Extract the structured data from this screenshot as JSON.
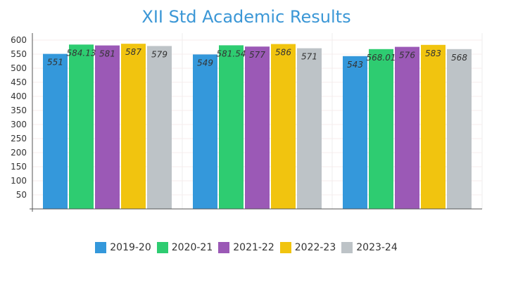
{
  "chart_data": {
    "type": "bar",
    "title": "XII Std Academic Results",
    "xlabel": "",
    "ylabel": "",
    "ylim": [
      0,
      600
    ],
    "yticks": [
      50,
      100,
      150,
      200,
      250,
      300,
      350,
      400,
      450,
      500,
      550,
      600
    ],
    "categories": [
      "",
      "",
      ""
    ],
    "series": [
      {
        "name": "2019-20",
        "color": "#3498db",
        "values": [
          551,
          549,
          543
        ],
        "labels": [
          "551",
          "549",
          "543"
        ]
      },
      {
        "name": "2020-21",
        "color": "#2ecc71",
        "values": [
          584.13,
          581.54,
          568.01
        ],
        "labels": [
          "584.13",
          "581.54",
          "568.01"
        ]
      },
      {
        "name": "2021-22",
        "color": "#9b59b6",
        "values": [
          581,
          577,
          576
        ],
        "labels": [
          "581",
          "577",
          "576"
        ]
      },
      {
        "name": "2022-23",
        "color": "#f1c40f",
        "values": [
          587,
          586,
          583
        ],
        "labels": [
          "587",
          "586",
          "583"
        ]
      },
      {
        "name": "2023-24",
        "color": "#bdc3c7",
        "values": [
          579,
          571,
          568
        ],
        "labels": [
          "579",
          "571",
          "568"
        ]
      }
    ],
    "grid": true,
    "legend": "bottom"
  }
}
